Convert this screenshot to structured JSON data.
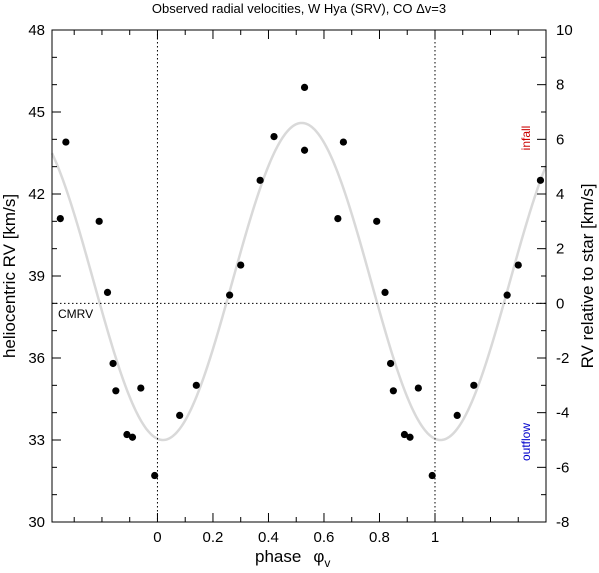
{
  "chart_data": {
    "type": "scatter",
    "title": "Observed radial velocities, W Hya (SRV), CO Δv=3",
    "xlabel": "phase",
    "xlabel_symbol": "φ",
    "xlabel_subscript": "v",
    "ylabel_left": "heliocentric RV   [km/s]",
    "ylabel_right": "RV relative to star   [km/s]",
    "xlim": [
      -0.38,
      1.4
    ],
    "ylim_left": [
      30,
      48
    ],
    "ylim_right": [
      -8,
      10
    ],
    "x_ticks": [
      0,
      0.2,
      0.4,
      0.6,
      0.8,
      1
    ],
    "x_tick_labels": [
      "0",
      "0.2",
      "0.4",
      "0.6",
      "0.8",
      "1"
    ],
    "y_ticks_left": [
      30,
      33,
      36,
      39,
      42,
      45,
      48
    ],
    "y_ticks_right": [
      -8,
      -6,
      -4,
      -2,
      0,
      2,
      4,
      6,
      8,
      10
    ],
    "cmrv": 38,
    "cmrv_label": "CMRV",
    "vertical_reference_lines": [
      0,
      1
    ],
    "grid": false,
    "annotations": [
      {
        "text": "infall",
        "color": "#cc0000"
      },
      {
        "text": "outflow",
        "color": "#0000cc"
      }
    ],
    "series": [
      {
        "marker": "filled-circle",
        "color": "#000000",
        "x": [
          -0.35,
          -0.33,
          -0.21,
          -0.18,
          -0.16,
          -0.15,
          -0.11,
          -0.09,
          -0.06,
          -0.01,
          0.08,
          0.14,
          0.26,
          0.3,
          0.37,
          0.42,
          0.53,
          0.53,
          0.65,
          0.67,
          0.79,
          0.82,
          0.84,
          0.85,
          0.89,
          0.91,
          0.94,
          0.99,
          1.08,
          1.14,
          1.26,
          1.3,
          1.38
        ],
        "y": [
          41.1,
          43.9,
          41.0,
          38.4,
          35.8,
          34.8,
          33.2,
          33.1,
          34.9,
          31.7,
          33.9,
          35.0,
          38.3,
          39.4,
          42.5,
          44.1,
          45.9,
          43.6,
          41.1,
          43.9,
          41.0,
          38.4,
          35.8,
          34.8,
          33.2,
          33.1,
          34.9,
          31.7,
          33.9,
          35.0,
          38.3,
          39.4,
          42.5
        ]
      },
      {
        "line": "fit-curve",
        "color": "#d9d9d9",
        "mean": 38.8,
        "amplitude": 5.8,
        "phase_of_maximum": 0.52
      }
    ]
  }
}
